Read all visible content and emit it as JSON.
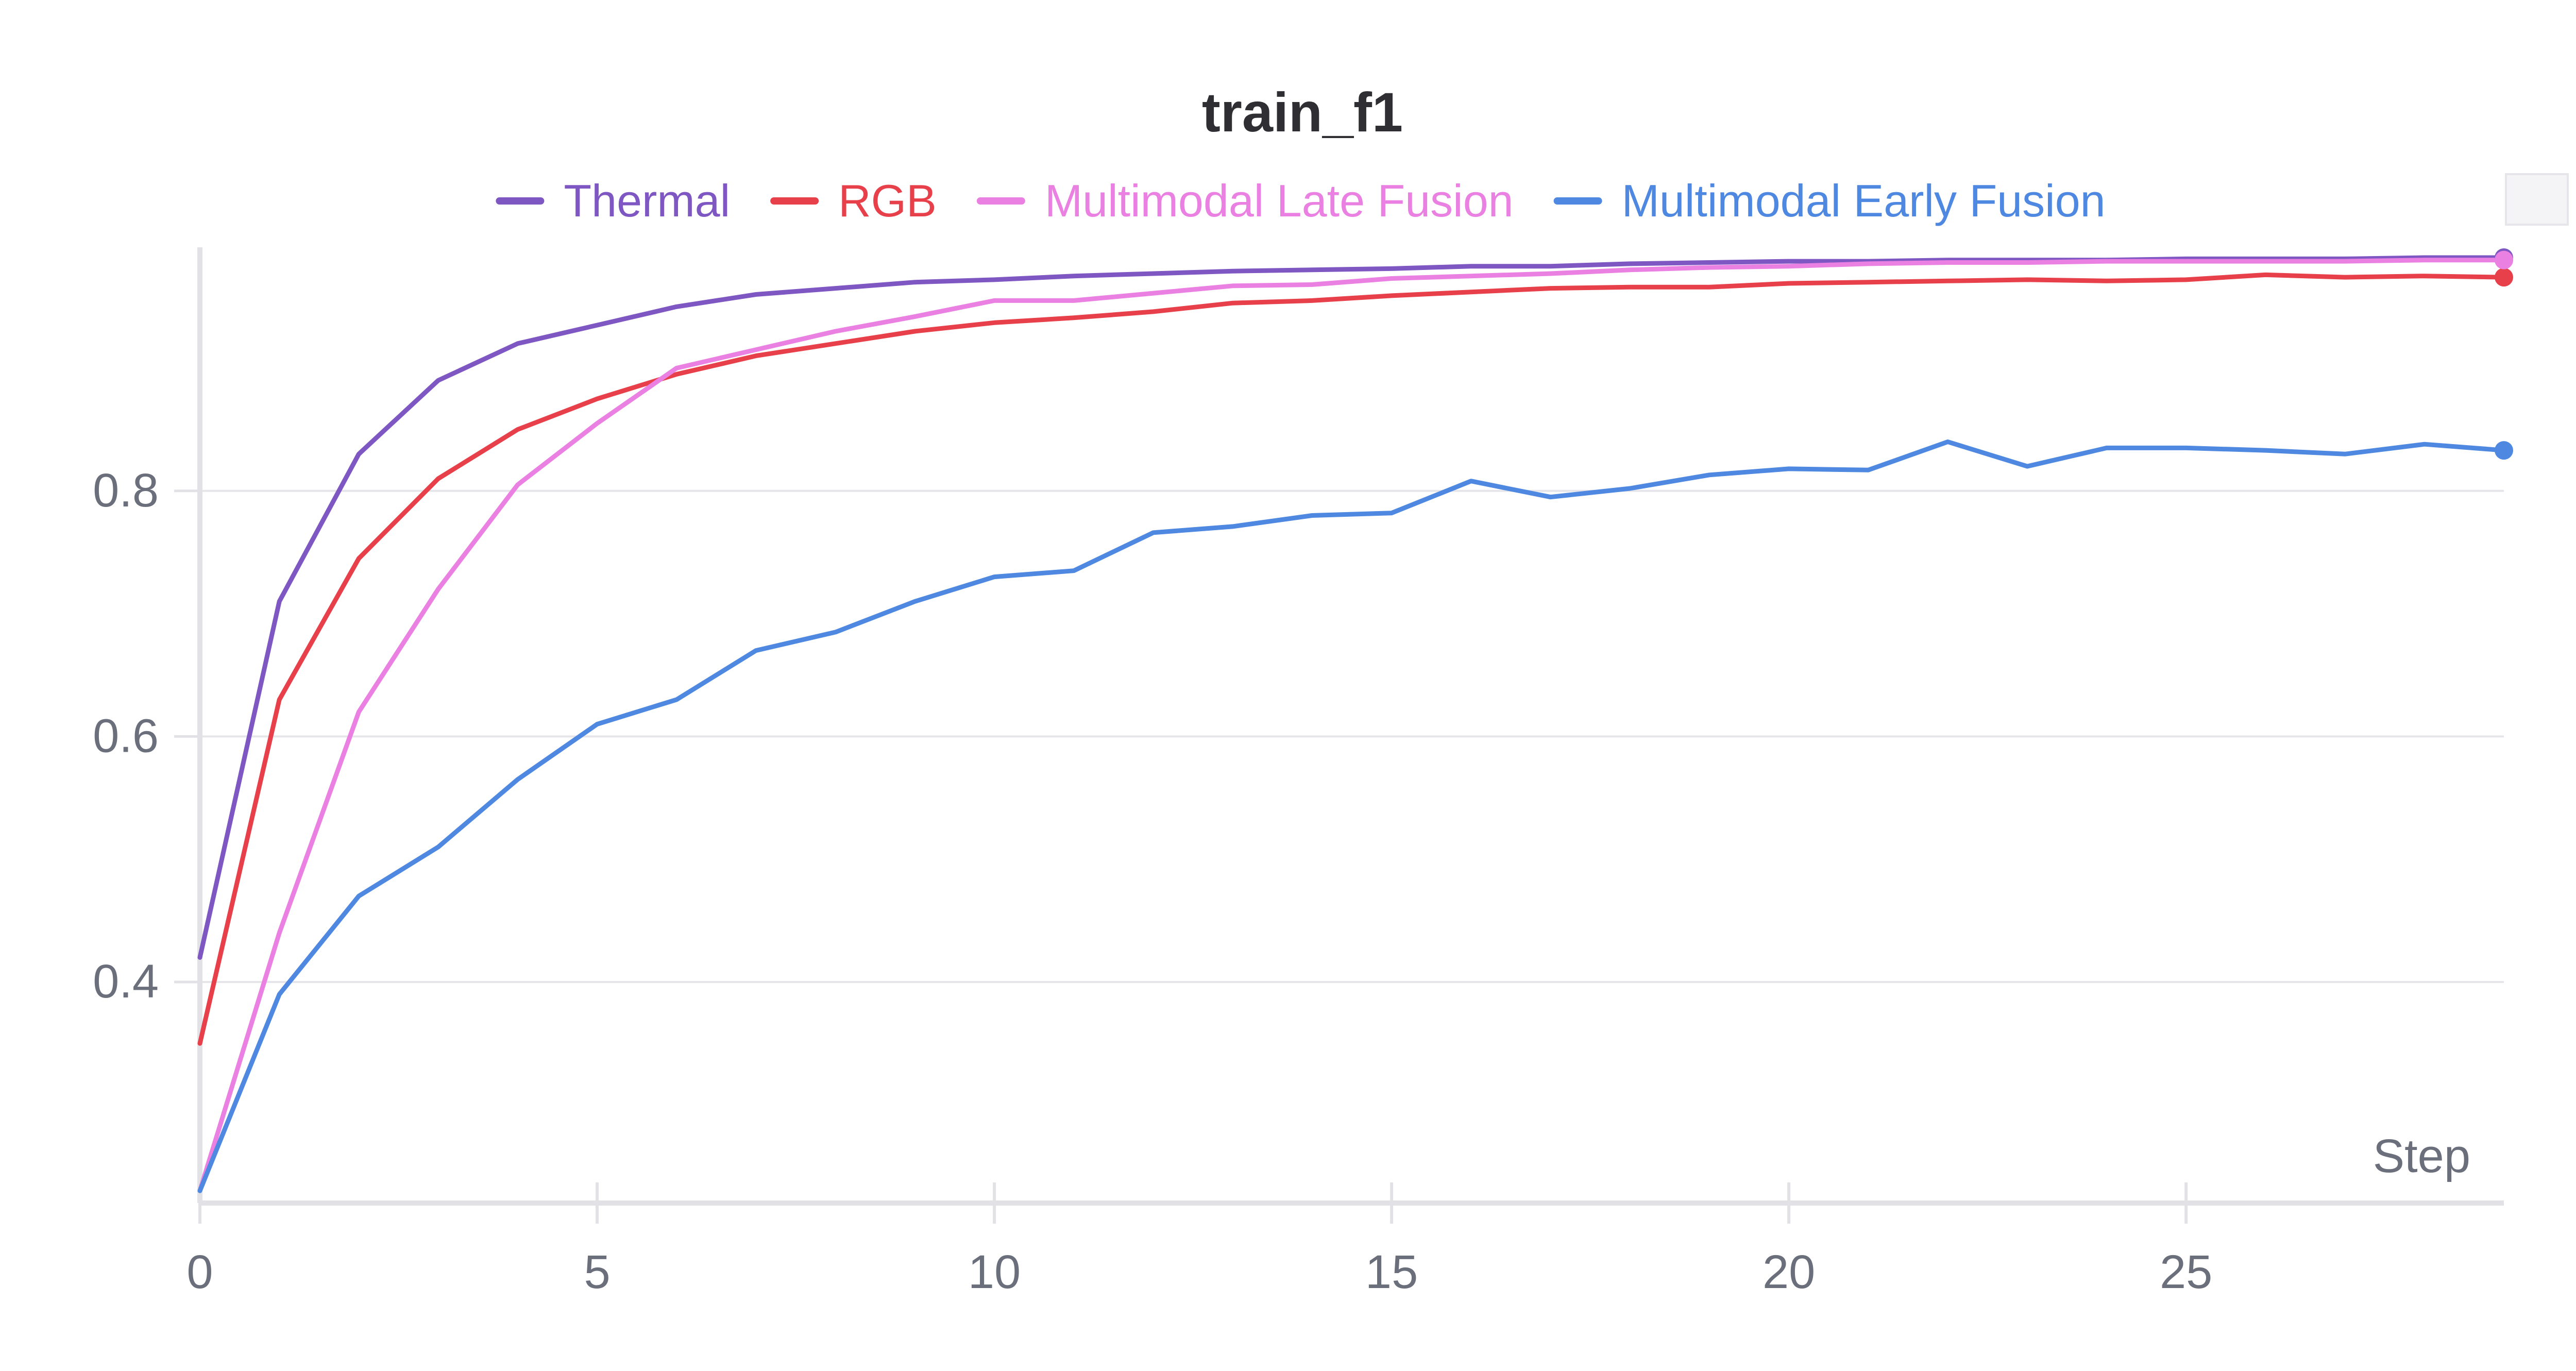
{
  "chart_data": {
    "type": "line",
    "title": "train_f1",
    "xlabel": "Step",
    "ylabel": "",
    "xlim": [
      0,
      29
    ],
    "ylim": [
      0.22,
      0.99
    ],
    "x_ticks": [
      0,
      5,
      10,
      15,
      20,
      25
    ],
    "y_ticks": [
      0.4,
      0.6,
      0.8
    ],
    "x_tick_labels": [
      "0",
      "5",
      "10",
      "15",
      "20",
      "25"
    ],
    "y_tick_labels": [
      "0.4",
      "0.6",
      "0.8"
    ],
    "grid": "horizontal",
    "legend": "top-center",
    "x": [
      0,
      1,
      2,
      3,
      4,
      5,
      6,
      7,
      8,
      9,
      10,
      11,
      12,
      13,
      14,
      15,
      16,
      17,
      18,
      19,
      20,
      21,
      22,
      23,
      24,
      25,
      26,
      27,
      28,
      29
    ],
    "series": [
      {
        "name": "Thermal",
        "color": "#7e57c2",
        "values": [
          0.42,
          0.71,
          0.83,
          0.89,
          0.92,
          0.935,
          0.95,
          0.96,
          0.965,
          0.97,
          0.972,
          0.975,
          0.977,
          0.979,
          0.98,
          0.981,
          0.983,
          0.983,
          0.985,
          0.986,
          0.987,
          0.987,
          0.988,
          0.988,
          0.988,
          0.989,
          0.989,
          0.989,
          0.99,
          0.99
        ]
      },
      {
        "name": "RGB",
        "color": "#e8404a",
        "values": [
          0.35,
          0.63,
          0.745,
          0.81,
          0.85,
          0.875,
          0.895,
          0.91,
          0.92,
          0.93,
          0.937,
          0.941,
          0.946,
          0.953,
          0.955,
          0.959,
          0.962,
          0.965,
          0.966,
          0.966,
          0.969,
          0.97,
          0.971,
          0.972,
          0.971,
          0.972,
          0.976,
          0.974,
          0.975,
          0.974
        ]
      },
      {
        "name": "Multimodal Late Fusion",
        "color": "#ea80e2",
        "values": [
          0.23,
          0.44,
          0.62,
          0.72,
          0.805,
          0.855,
          0.9,
          0.915,
          0.93,
          0.942,
          0.955,
          0.955,
          0.961,
          0.967,
          0.968,
          0.973,
          0.975,
          0.977,
          0.98,
          0.982,
          0.983,
          0.985,
          0.986,
          0.986,
          0.987,
          0.987,
          0.987,
          0.987,
          0.988,
          0.988
        ]
      },
      {
        "name": "Multimodal Early Fusion",
        "color": "#4e88e0",
        "values": [
          0.23,
          0.39,
          0.47,
          0.51,
          0.565,
          0.61,
          0.63,
          0.67,
          0.685,
          0.71,
          0.73,
          0.735,
          0.766,
          0.771,
          0.78,
          0.782,
          0.808,
          0.795,
          0.802,
          0.813,
          0.818,
          0.817,
          0.84,
          0.82,
          0.835,
          0.835,
          0.833,
          0.83,
          0.838,
          0.833
        ]
      }
    ]
  }
}
